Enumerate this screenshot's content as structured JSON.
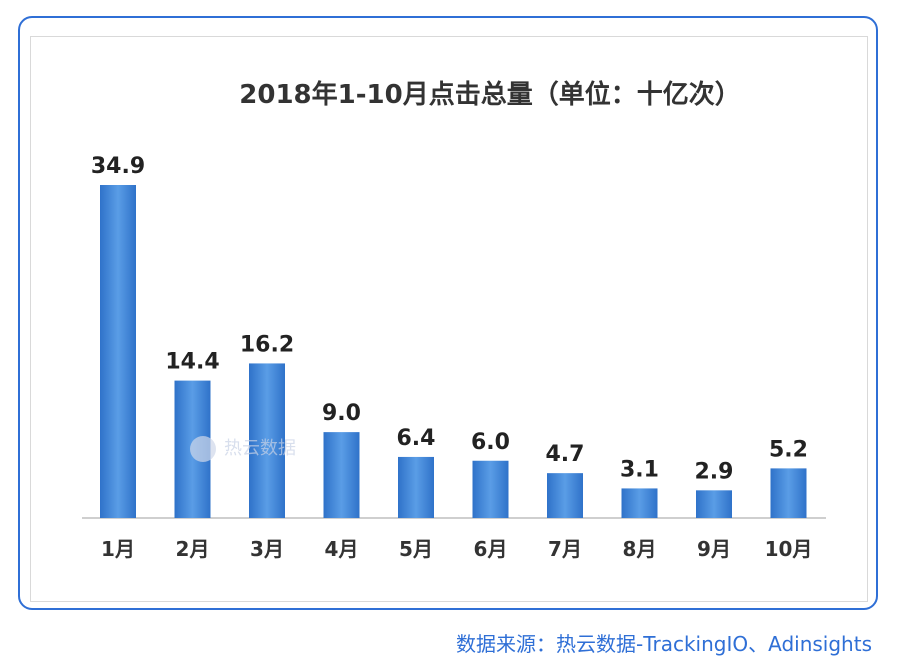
{
  "chart_data": {
    "type": "bar",
    "title": "2018年1-10月点击总量（单位：十亿次）",
    "categories": [
      "1月",
      "2月",
      "3月",
      "4月",
      "5月",
      "6月",
      "7月",
      "8月",
      "9月",
      "10月"
    ],
    "value_labels": [
      "34.9",
      "14.4",
      "16.2",
      "9.0",
      "6.4",
      "6.0",
      "4.7",
      "3.1",
      "2.9",
      "5.2"
    ],
    "values": [
      34.9,
      14.4,
      16.2,
      9.0,
      6.4,
      6.0,
      4.7,
      3.1,
      2.9,
      5.2
    ],
    "ylim": [
      0,
      34.9
    ],
    "grid": false,
    "bar_color": "#3f86d8"
  },
  "watermark": {
    "text": "热云数据"
  },
  "source": {
    "text": "数据来源：热云数据-TrackingIO、Adinsights"
  }
}
